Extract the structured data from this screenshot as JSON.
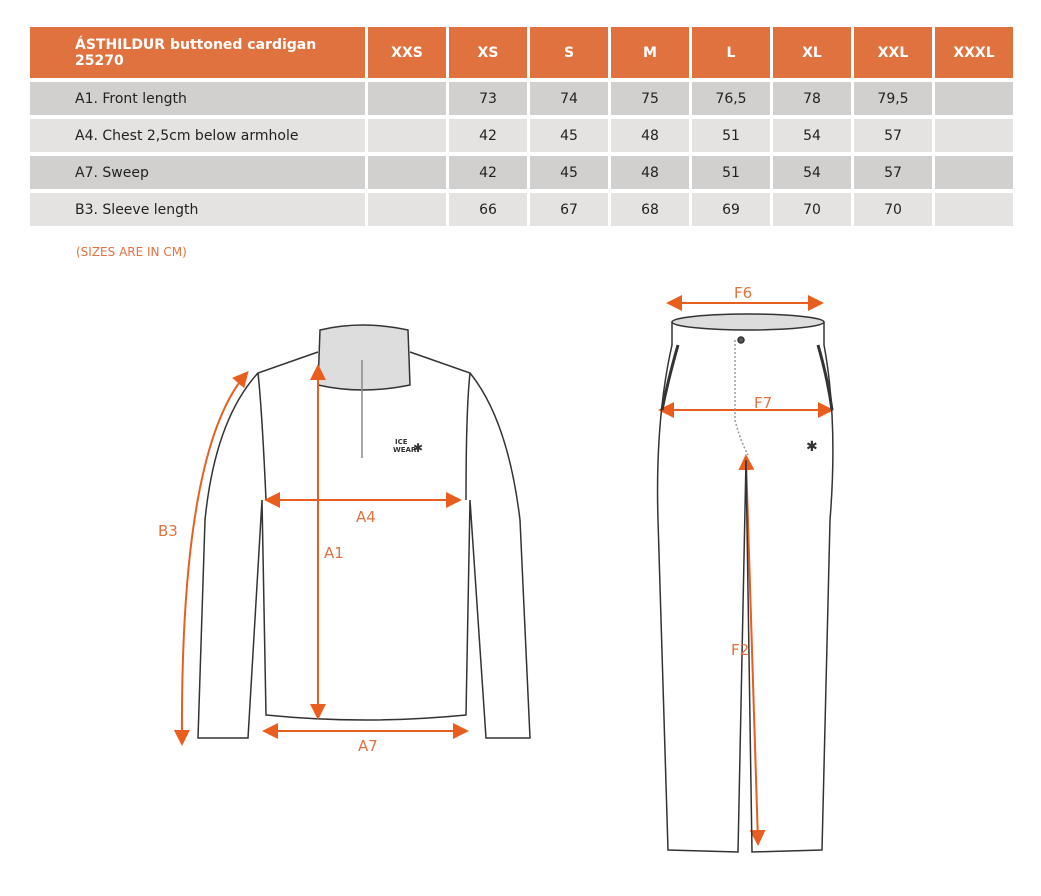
{
  "table": {
    "title": "ÁSTHILDUR buttoned cardigan 25270",
    "sizes": [
      "XXS",
      "XS",
      "S",
      "M",
      "L",
      "XL",
      "XXL",
      "XXXL"
    ],
    "rows": [
      {
        "label": "A1. Front length",
        "values": [
          "",
          "73",
          "74",
          "75",
          "76,5",
          "78",
          "79,5",
          ""
        ]
      },
      {
        "label": "A4. Chest 2,5cm below armhole",
        "values": [
          "",
          "42",
          "45",
          "48",
          "51",
          "54",
          "57",
          ""
        ]
      },
      {
        "label": "A7. Sweep",
        "values": [
          "",
          "42",
          "45",
          "48",
          "51",
          "54",
          "57",
          ""
        ]
      },
      {
        "label": "B3. Sleeve length",
        "values": [
          "",
          "66",
          "67",
          "68",
          "69",
          "70",
          "70",
          ""
        ]
      }
    ]
  },
  "note": "(SIZES ARE IN CM)",
  "diagram": {
    "top_labels": {
      "a1": "A1",
      "a4": "A4",
      "a7": "A7",
      "b3": "B3"
    },
    "pants_labels": {
      "f2": "F2",
      "f6": "F6",
      "f7": "F7"
    },
    "logo": "ICE WEAR"
  },
  "colors": {
    "accent": "#E07240",
    "row_dark": "#D1D0CE",
    "row_light": "#E4E3E1"
  }
}
